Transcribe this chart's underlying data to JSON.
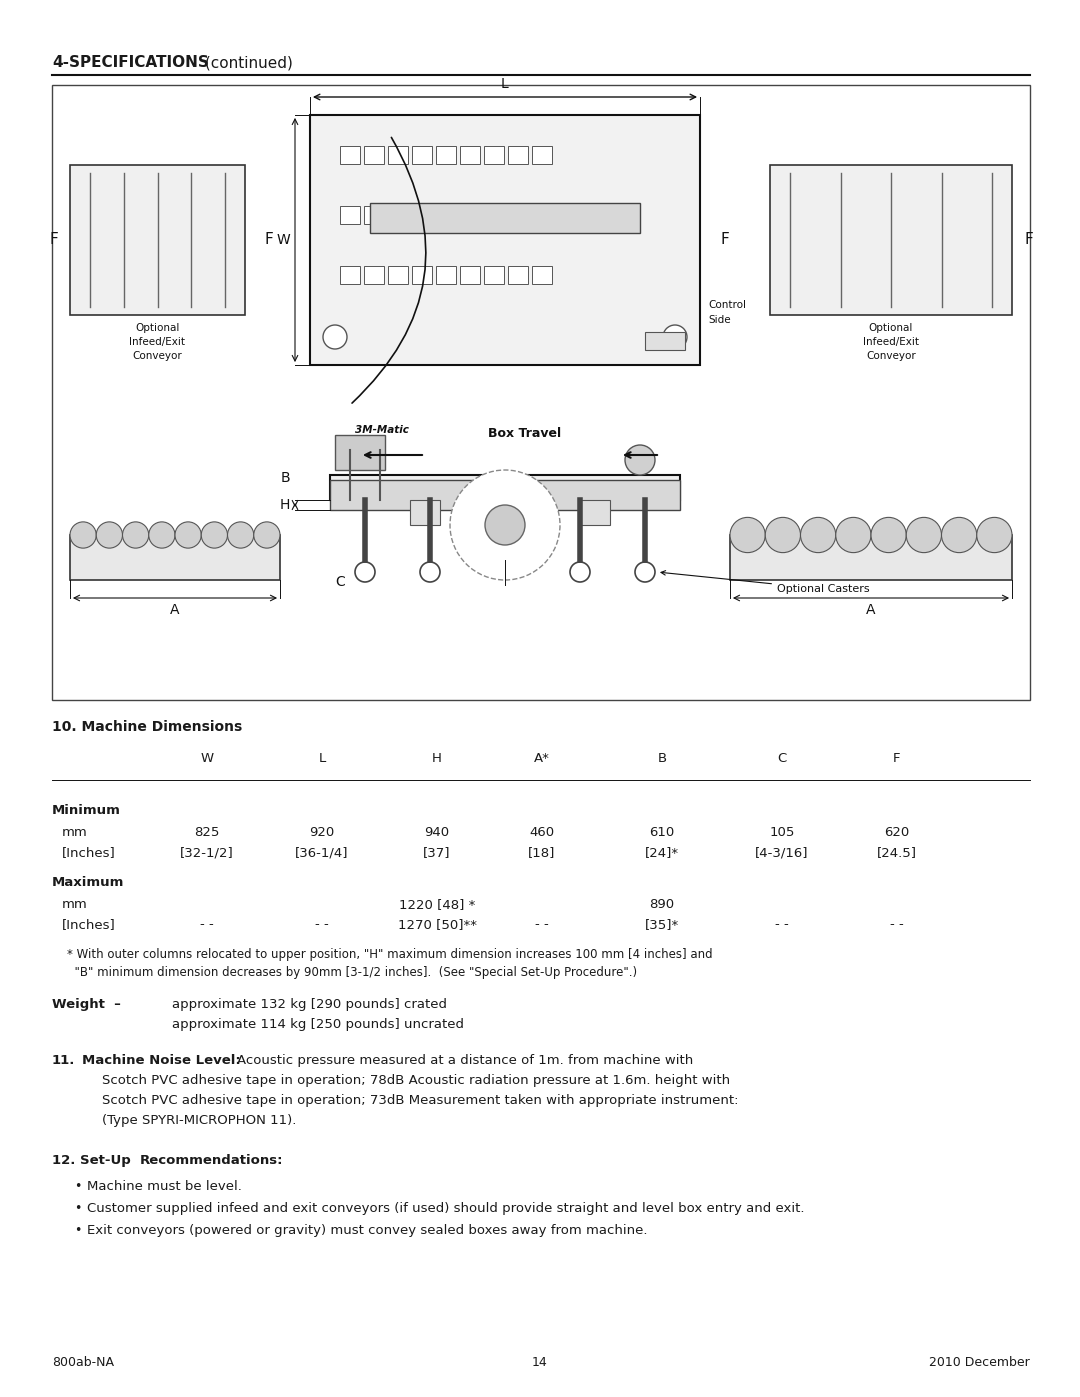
{
  "header_bold": "4-SPECIFICATIONS",
  "header_normal": " (continued)",
  "section10_title": "10. Machine Dimensions",
  "table_headers": [
    "",
    "W",
    "L",
    "H",
    "A*",
    "B",
    "C",
    "F"
  ],
  "min_mm": [
    "mm",
    "825",
    "920",
    "940",
    "460",
    "610",
    "105",
    "620"
  ],
  "min_inch": [
    "[Inches]",
    "[32-1/2]",
    "[36-1/4]",
    "[37]",
    "[18]",
    "[24]*",
    "[4-3/16]",
    "[24.5]"
  ],
  "max_mm": [
    "mm",
    "",
    "",
    "1220 [48] *",
    "",
    "890",
    "",
    ""
  ],
  "max_inch": [
    "[Inches]",
    "- -",
    "- -",
    "1270 [50]**",
    "- -",
    "[35]*",
    "- -",
    "- -"
  ],
  "footnote_line1": "* With outer columns relocated to upper position, \"H\" maximum dimension increases 100 mm [4 inches] and",
  "footnote_line2": "  \"B\" minimum dimension decreases by 90mm [3-1/2 inches].  (See \"Special Set-Up Procedure\".)",
  "weight_label": "Weight  –",
  "weight_line1": "approximate 132 kg [290 pounds] crated",
  "weight_line2": "approximate 114 kg [250 pounds] uncrated",
  "sec11_num": "11.",
  "sec11_title": "   Machine Noise Level:",
  "sec11_body1": "  Acoustic pressure measured at a distance of 1m. from machine with",
  "sec11_body2": "    Scotch PVC adhesive tape in operation; 78dB Acoustic radiation pressure at 1.6m. height with",
  "sec11_body3": "    Scotch PVC adhesive tape in operation; 73dB Measurement taken with appropriate instrument:",
  "sec11_body4": "    (Type SPYRI-MICROPHON 11).",
  "sec12_num": "12. Set-Up",
  "sec12_title": "   Recommendations:",
  "bullet1": "Machine must be level.",
  "bullet2": "Customer supplied infeed and exit conveyors (if used) should provide straight and level box entry and exit.",
  "bullet3": "Exit conveyors (powered or gravity) must convey sealed boxes away from machine.",
  "footer_left": "800ab-NA",
  "footer_center": "14",
  "footer_right": "2010 December",
  "bg_color": "#ffffff",
  "text_color": "#1a1a1a",
  "dark": "#111111"
}
